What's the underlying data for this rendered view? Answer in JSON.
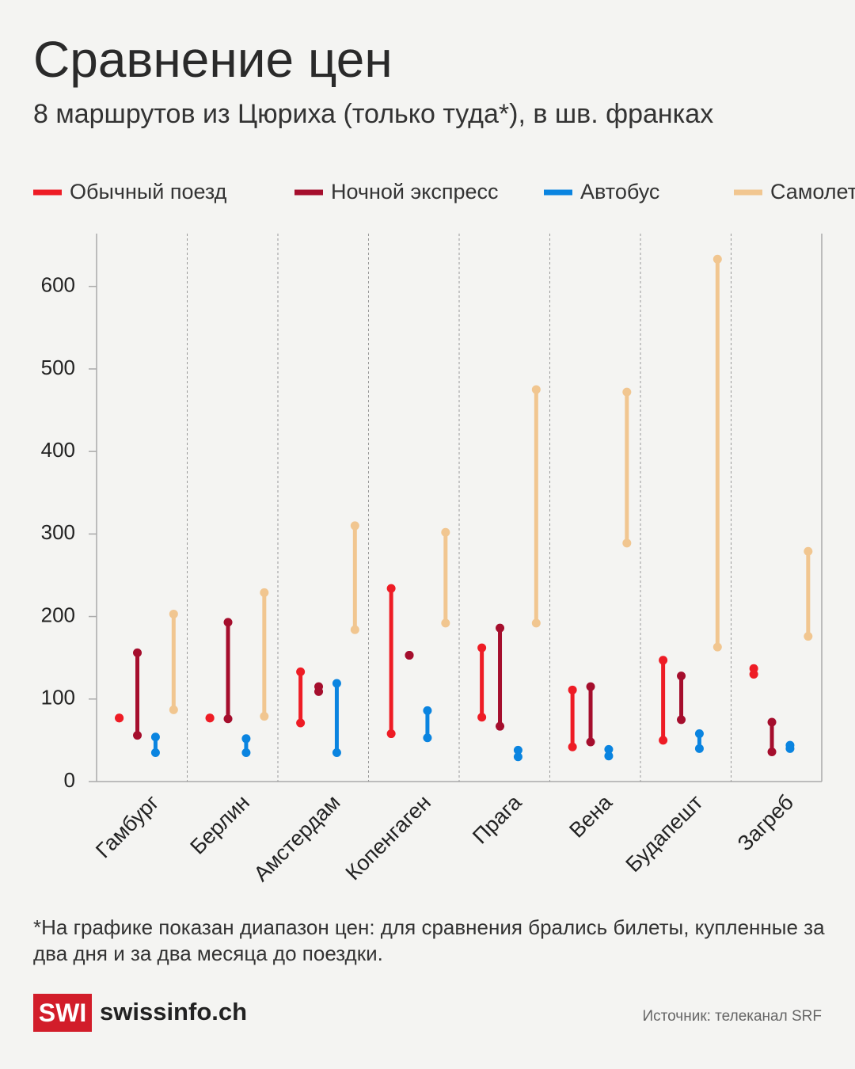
{
  "chart_data": {
    "type": "range",
    "title": "Сравнение цен",
    "subtitle": "8 маршрутов из Цюриха (только туда*), в шв. франках",
    "categories": [
      "Гамбург",
      "Берлин",
      "Амстердам",
      "Копенгаген",
      "Прага",
      "Вена",
      "Будапешт",
      "Загреб"
    ],
    "series": [
      {
        "name": "Обычный поезд",
        "color": "#ee1c25",
        "low": [
          77,
          77,
          71,
          58,
          78,
          42,
          50,
          130
        ],
        "high": [
          77,
          77,
          133,
          234,
          162,
          111,
          147,
          137
        ]
      },
      {
        "name": "Ночной экспресс",
        "color": "#a50e2d",
        "low": [
          56,
          76,
          109,
          153,
          67,
          48,
          75,
          36
        ],
        "high": [
          156,
          193,
          115,
          153,
          186,
          115,
          128,
          72
        ]
      },
      {
        "name": "Автобус",
        "color": "#0a84e0",
        "low": [
          35,
          35,
          35,
          53,
          30,
          31,
          40,
          40
        ],
        "high": [
          54,
          52,
          119,
          86,
          38,
          39,
          58,
          44
        ]
      },
      {
        "name": "Самолет",
        "color": "#f1c690",
        "low": [
          87,
          79,
          184,
          192,
          192,
          289,
          163,
          176
        ],
        "high": [
          203,
          229,
          310,
          302,
          475,
          472,
          633,
          279
        ]
      }
    ],
    "ylim": [
      0,
      664
    ],
    "yticks": [
      0,
      100,
      200,
      300,
      400,
      500,
      600
    ],
    "footnote": "*На графике показан диапазон цен: для сравнения брались билеты, купленные за два дня и за два месяца до поездки.",
    "source": "Источник: телеканал SRF",
    "logo": {
      "mark": "SWI",
      "text": "swissinfo.ch"
    }
  }
}
